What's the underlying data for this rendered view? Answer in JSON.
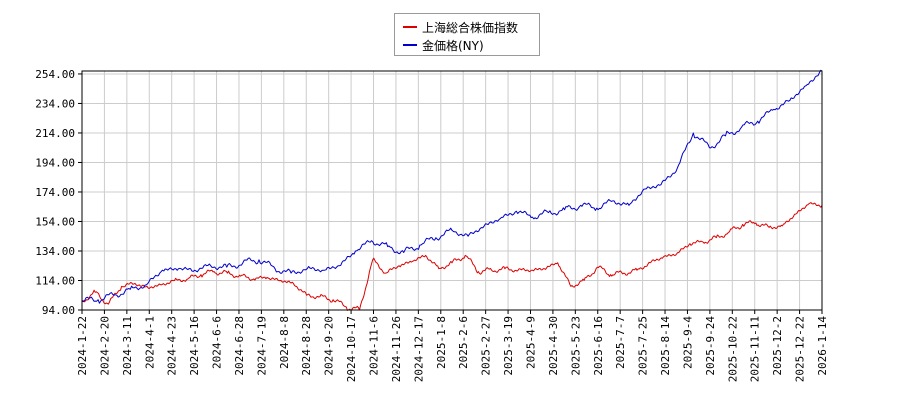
{
  "chart_data": {
    "type": "line",
    "title": "",
    "xlabel": "",
    "ylabel": "",
    "ylim": [
      94,
      256
    ],
    "y_ticks": [
      "94.00",
      "114.00",
      "134.00",
      "154.00",
      "174.00",
      "194.00",
      "214.00",
      "234.00",
      "254.00"
    ],
    "x_ticks": [
      "2024-1-22",
      "2024-2-20",
      "2024-3-11",
      "2024-4-1",
      "2024-4-23",
      "2024-5-16",
      "2024-6-6",
      "2024-6-28",
      "2024-7-19",
      "2024-8-8",
      "2024-8-28",
      "2024-9-20",
      "2024-10-17",
      "2024-11-6",
      "2024-11-26",
      "2024-12-17",
      "2025-1-8",
      "2025-2-6",
      "2025-2-27",
      "2025-3-19",
      "2025-4-9",
      "2025-4-30",
      "2025-5-23",
      "2025-6-16",
      "2025-7-7",
      "2025-7-25",
      "2025-8-14",
      "2025-9-4",
      "2025-9-24",
      "2025-10-22",
      "2025-11-11",
      "2025-12-2",
      "2025-12-22",
      "2026-1-14"
    ],
    "grid": true,
    "legend_position": "top-center",
    "series": [
      {
        "name": "上海総合株価指数",
        "color": "#dd0000",
        "values": [
          100,
          106,
          98,
          110,
          112,
          109,
          111,
          114,
          115,
          118,
          120,
          119,
          117,
          115,
          116,
          114,
          112,
          104,
          103,
          101,
          96,
          94,
          128,
          119,
          124,
          127,
          131,
          122,
          126,
          131,
          120,
          121,
          122,
          121,
          121,
          122,
          126,
          110,
          114,
          123,
          118,
          119,
          121,
          126,
          130,
          132,
          139,
          140,
          143,
          147,
          152,
          153,
          150,
          151,
          159,
          166,
          165
        ]
      },
      {
        "name": "金価格(NY)",
        "color": "#0000cc",
        "values": [
          100,
          101,
          104,
          108,
          111,
          121,
          122,
          121,
          124,
          123,
          126,
          128,
          122,
          119,
          122,
          121,
          124,
          134,
          141,
          137,
          133,
          138,
          143,
          148,
          144,
          151,
          156,
          161,
          157,
          160,
          162,
          165,
          163,
          168,
          165,
          176,
          179,
          190,
          214,
          204,
          212,
          218,
          222,
          230,
          236,
          246,
          256
        ]
      }
    ]
  }
}
